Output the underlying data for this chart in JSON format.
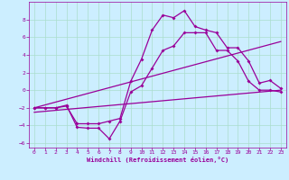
{
  "xlabel": "Windchill (Refroidissement éolien,°C)",
  "background_color": "#cceeff",
  "grid_color": "#aaddcc",
  "line_color": "#990099",
  "xlim": [
    -0.5,
    23.5
  ],
  "ylim": [
    -6.5,
    10.0
  ],
  "xticks": [
    0,
    1,
    2,
    3,
    4,
    5,
    6,
    7,
    8,
    9,
    10,
    11,
    12,
    13,
    14,
    15,
    16,
    17,
    18,
    19,
    20,
    21,
    22,
    23
  ],
  "yticks": [
    -6,
    -4,
    -2,
    0,
    2,
    4,
    6,
    8
  ],
  "line1_x": [
    0,
    1,
    2,
    3,
    4,
    5,
    6,
    7,
    8,
    9,
    10,
    11,
    12,
    13,
    14,
    15,
    16,
    17,
    18,
    19,
    20,
    21,
    22,
    23
  ],
  "line1_y": [
    -2,
    -2,
    -2,
    -1.8,
    -3.8,
    -3.8,
    -3.8,
    -3.5,
    -3.2,
    1.0,
    3.5,
    6.8,
    8.5,
    8.2,
    9.0,
    7.2,
    6.8,
    6.5,
    4.8,
    4.8,
    3.3,
    0.8,
    1.1,
    0.2
  ],
  "line2_x": [
    0,
    1,
    2,
    3,
    4,
    5,
    6,
    7,
    8,
    9,
    10,
    11,
    12,
    13,
    14,
    15,
    16,
    17,
    18,
    19,
    20,
    21,
    22,
    23
  ],
  "line2_y": [
    -2.0,
    -2.0,
    -2.0,
    -1.7,
    -4.2,
    -4.3,
    -4.3,
    -5.5,
    -3.5,
    -0.2,
    0.5,
    2.5,
    4.5,
    5.0,
    6.5,
    6.5,
    6.5,
    4.5,
    4.5,
    3.3,
    1.0,
    0.0,
    0.0,
    -0.2
  ],
  "line3_x": [
    0,
    23
  ],
  "line3_y": [
    -2.0,
    5.5
  ],
  "line4_x": [
    0,
    23
  ],
  "line4_y": [
    -2.5,
    0.0
  ]
}
